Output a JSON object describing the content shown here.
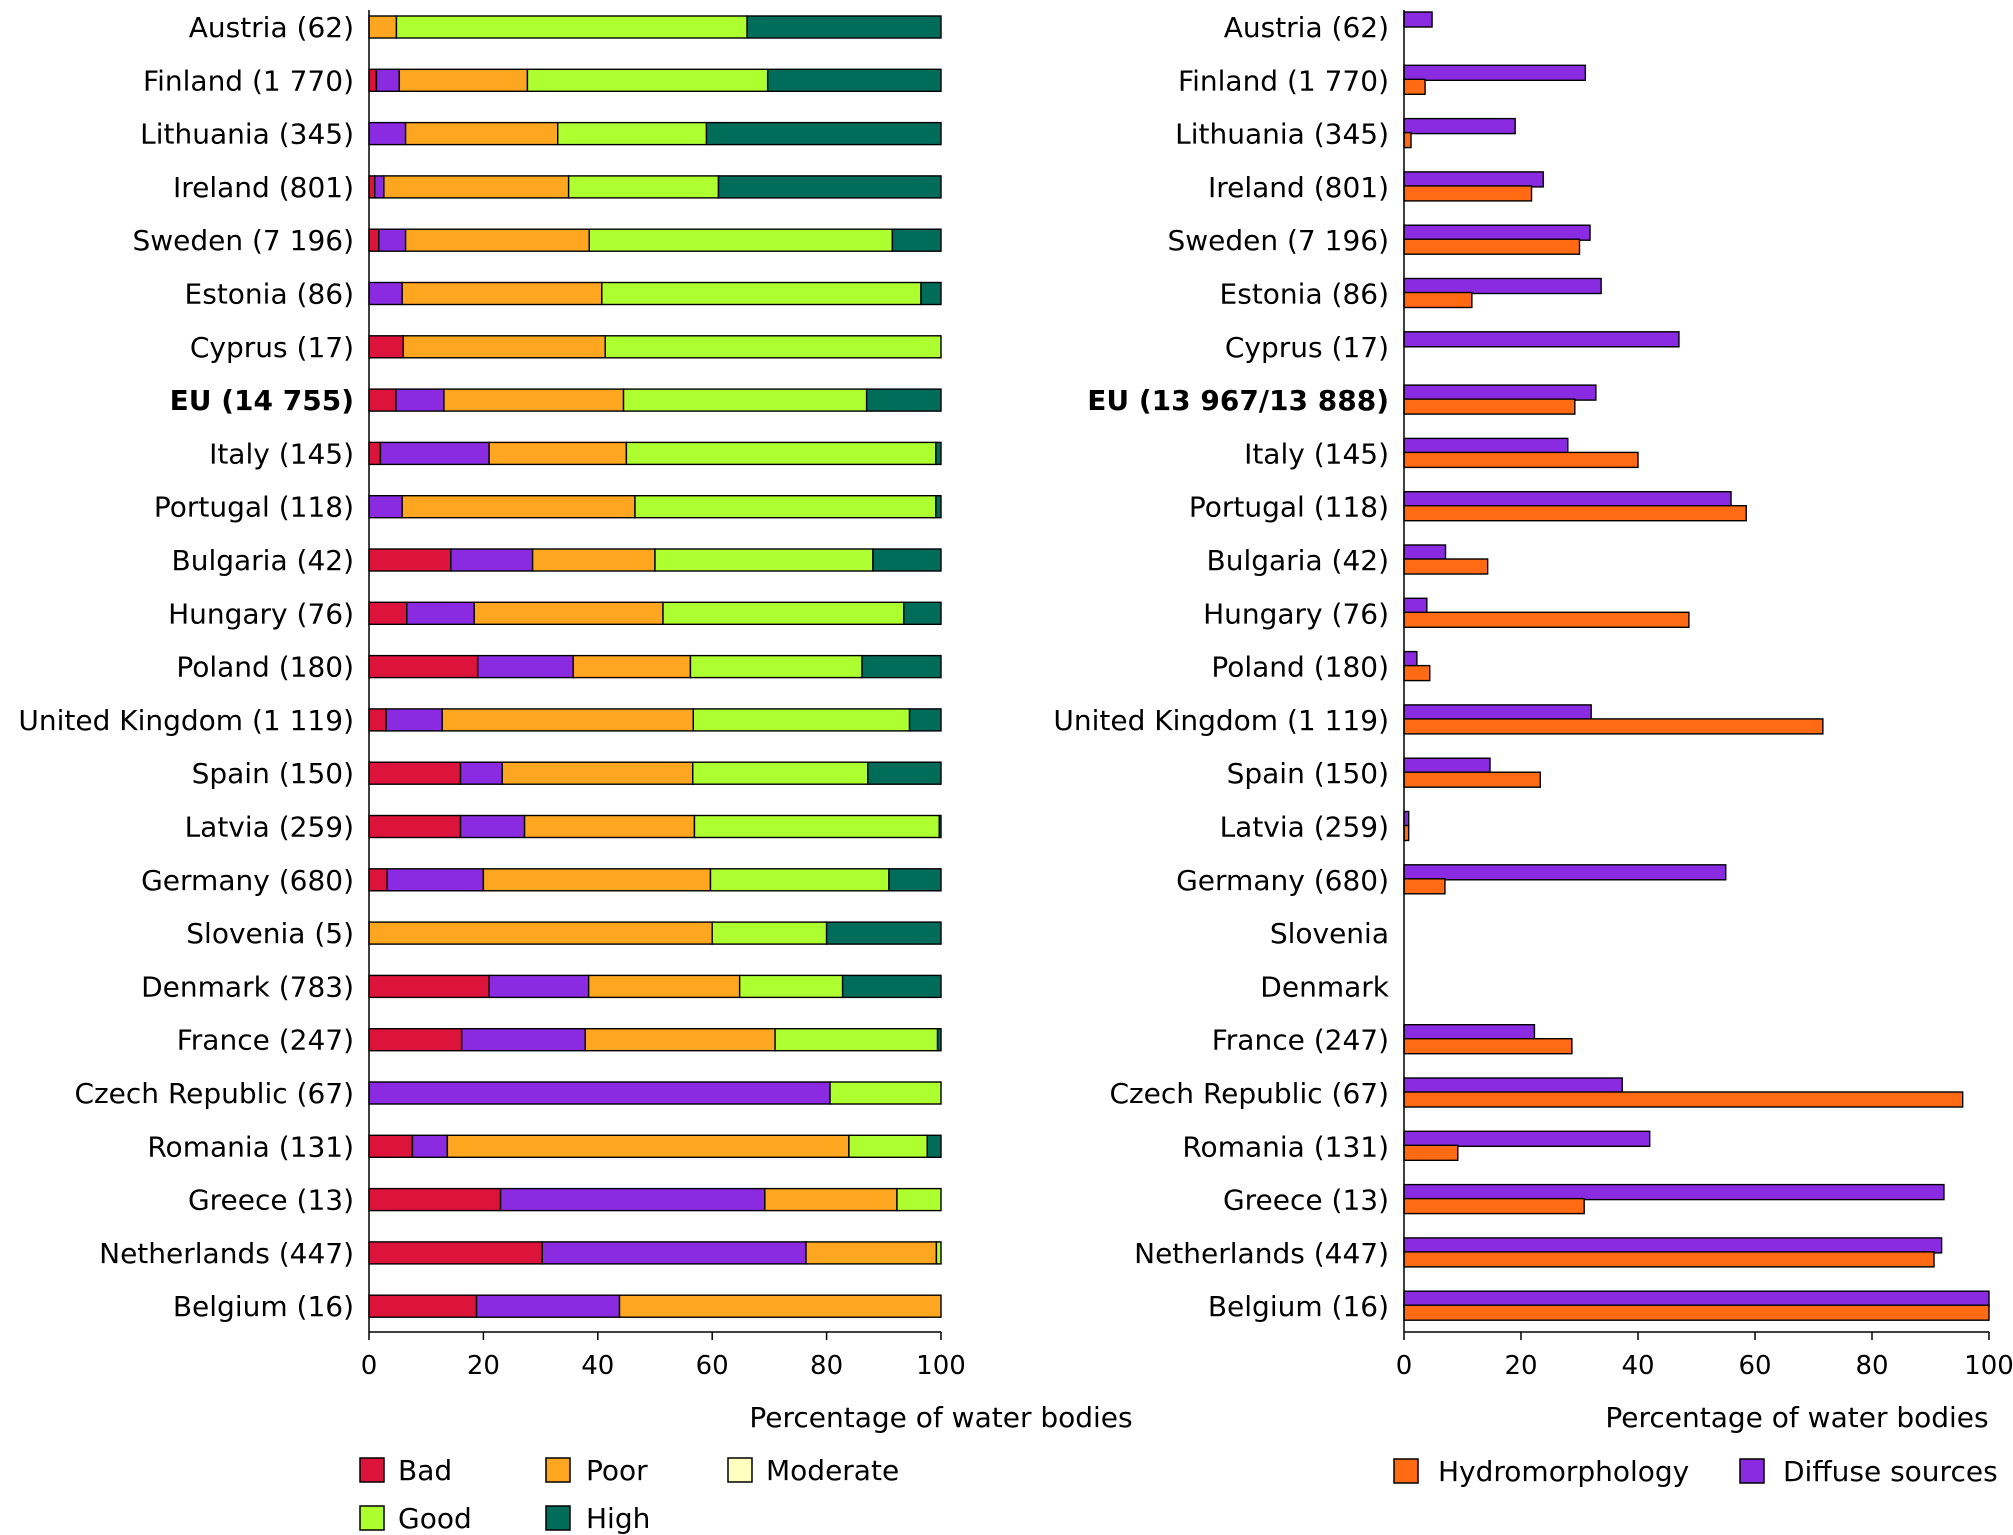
{
  "colors": {
    "bad": "#DC143C",
    "moderate_purple": "#8A2BE2",
    "poor": "#FFA620",
    "moderate": "#FFFFC0",
    "good": "#ADFF2F",
    "high": "#006D5B",
    "hydromorphology": "#FF6A13",
    "diffuse": "#8A2BE2"
  },
  "chart_data": [
    {
      "type": "bar",
      "orientation": "horizontal",
      "stacked": true,
      "categories": [
        "Austria (62)",
        "Finland (1 770)",
        "Lithuania (345)",
        "Ireland (801)",
        "Sweden (7 196)",
        "Estonia (86)",
        "Cyprus (17)",
        "EU (14 755)",
        "Italy (145)",
        "Portugal (118)",
        "Bulgaria (42)",
        "Hungary (76)",
        "Poland (180)",
        "United Kingdom (1 119)",
        "Spain (150)",
        "Latvia (259)",
        "Germany (680)",
        "Slovenia (5)",
        "Denmark (783)",
        "France (247)",
        "Czech Republic (67)",
        "Romania (131)",
        "Greece (13)",
        "Netherlands (447)",
        "Belgium (16)"
      ],
      "bold_category": "EU (14 755)",
      "series": [
        {
          "name": "Bad",
          "color_key": "bad",
          "values": [
            0,
            1.3,
            0,
            1,
            1.7,
            0,
            6,
            4.7,
            2,
            0,
            14.3,
            6.6,
            19,
            3,
            16,
            16,
            3.2,
            0,
            21,
            16.2,
            0,
            7.6,
            23,
            30.3,
            18.8
          ]
        },
        {
          "name": "",
          "color_key": "moderate_purple",
          "values": [
            0,
            4,
            6.4,
            1.6,
            4.7,
            5.8,
            0,
            8.4,
            19,
            5.8,
            14.3,
            11.8,
            16.7,
            9.8,
            7.3,
            11.2,
            16.8,
            0,
            17.4,
            21.6,
            80.6,
            6.1,
            46.2,
            46.1,
            25
          ]
        },
        {
          "name": "Poor",
          "color_key": "poor",
          "values": [
            4.8,
            22.4,
            26.6,
            32.3,
            32.1,
            34.9,
            35.3,
            31.4,
            24,
            40.7,
            21.4,
            33,
            20.5,
            43.9,
            33.3,
            29.7,
            39.7,
            60,
            26.4,
            33.2,
            0,
            70.2,
            23.1,
            22.8,
            56.2
          ]
        },
        {
          "name": "Moderate",
          "color_key": "moderate",
          "values": [
            0,
            0,
            0,
            0,
            0,
            0,
            0,
            0,
            0,
            0,
            0,
            0,
            0,
            0,
            0,
            0,
            0,
            0,
            0,
            0,
            0,
            0,
            0,
            0,
            0
          ]
        },
        {
          "name": "Good",
          "color_key": "good",
          "values": [
            61.3,
            42,
            26,
            26.2,
            53,
            55.8,
            58.7,
            42.5,
            54.1,
            52.6,
            38.1,
            42.1,
            30,
            37.8,
            30.6,
            42.8,
            31.2,
            20,
            18,
            28.4,
            19.4,
            13.7,
            7.7,
            0.8,
            0
          ]
        },
        {
          "name": "High",
          "color_key": "high",
          "values": [
            33.9,
            30.3,
            41,
            38.9,
            8.5,
            3.5,
            0,
            13,
            0.9,
            0.9,
            11.9,
            6.5,
            13.8,
            5.5,
            12.8,
            0.3,
            9.1,
            20,
            17.2,
            0.6,
            0,
            2.4,
            0,
            0,
            0
          ]
        }
      ],
      "xlabel": "Percentage of water bodies",
      "xlim": [
        0,
        100
      ],
      "xticks": [
        "0",
        "20",
        "40",
        "60",
        "80",
        "100"
      ],
      "grid": false,
      "legend": {
        "placement": "bottom",
        "entries": [
          "Bad",
          "Poor",
          "Moderate",
          "Good",
          "High"
        ]
      }
    },
    {
      "type": "bar",
      "orientation": "horizontal",
      "stacked": false,
      "categories": [
        "Austria (62)",
        "Finland (1 770)",
        "Lithuania (345)",
        "Ireland (801)",
        "Sweden (7 196)",
        "Estonia (86)",
        "Cyprus (17)",
        "EU (13 967/13 888)",
        "Italy (145)",
        "Portugal (118)",
        "Bulgaria (42)",
        "Hungary (76)",
        "Poland (180)",
        "United Kingdom (1 119)",
        "Spain (150)",
        "Latvia (259)",
        "Germany (680)",
        "Slovenia",
        "Denmark",
        "France (247)",
        "Czech Republic (67)",
        "Romania (131)",
        "Greece (13)",
        "Netherlands (447)",
        "Belgium (16)"
      ],
      "bold_category": "EU (13 967/13 888)",
      "series": [
        {
          "name": "Diffuse sources",
          "color_key": "diffuse",
          "values": [
            4.8,
            31,
            19,
            23.8,
            31.8,
            33.7,
            47,
            32.8,
            28,
            55.9,
            7.1,
            3.9,
            2.2,
            32,
            14.7,
            0.8,
            55,
            0,
            0,
            22.3,
            37.3,
            42,
            92.3,
            91.9,
            100
          ]
        },
        {
          "name": "Hydromorphology",
          "color_key": "hydromorphology",
          "values": [
            0,
            3.6,
            1.2,
            21.8,
            30,
            11.6,
            0,
            29.2,
            40,
            58.5,
            14.3,
            48.7,
            4.4,
            71.6,
            23.3,
            0.8,
            7,
            0,
            0,
            28.7,
            95.5,
            9.2,
            30.8,
            90.6,
            100
          ]
        }
      ],
      "xlabel": "Percentage of water bodies",
      "xlim": [
        0,
        100
      ],
      "xticks": [
        "0",
        "20",
        "40",
        "60",
        "80",
        "100"
      ],
      "grid": false,
      "legend": {
        "placement": "bottom",
        "entries": [
          "Hydromorphology",
          "Diffuse sources"
        ]
      }
    }
  ]
}
